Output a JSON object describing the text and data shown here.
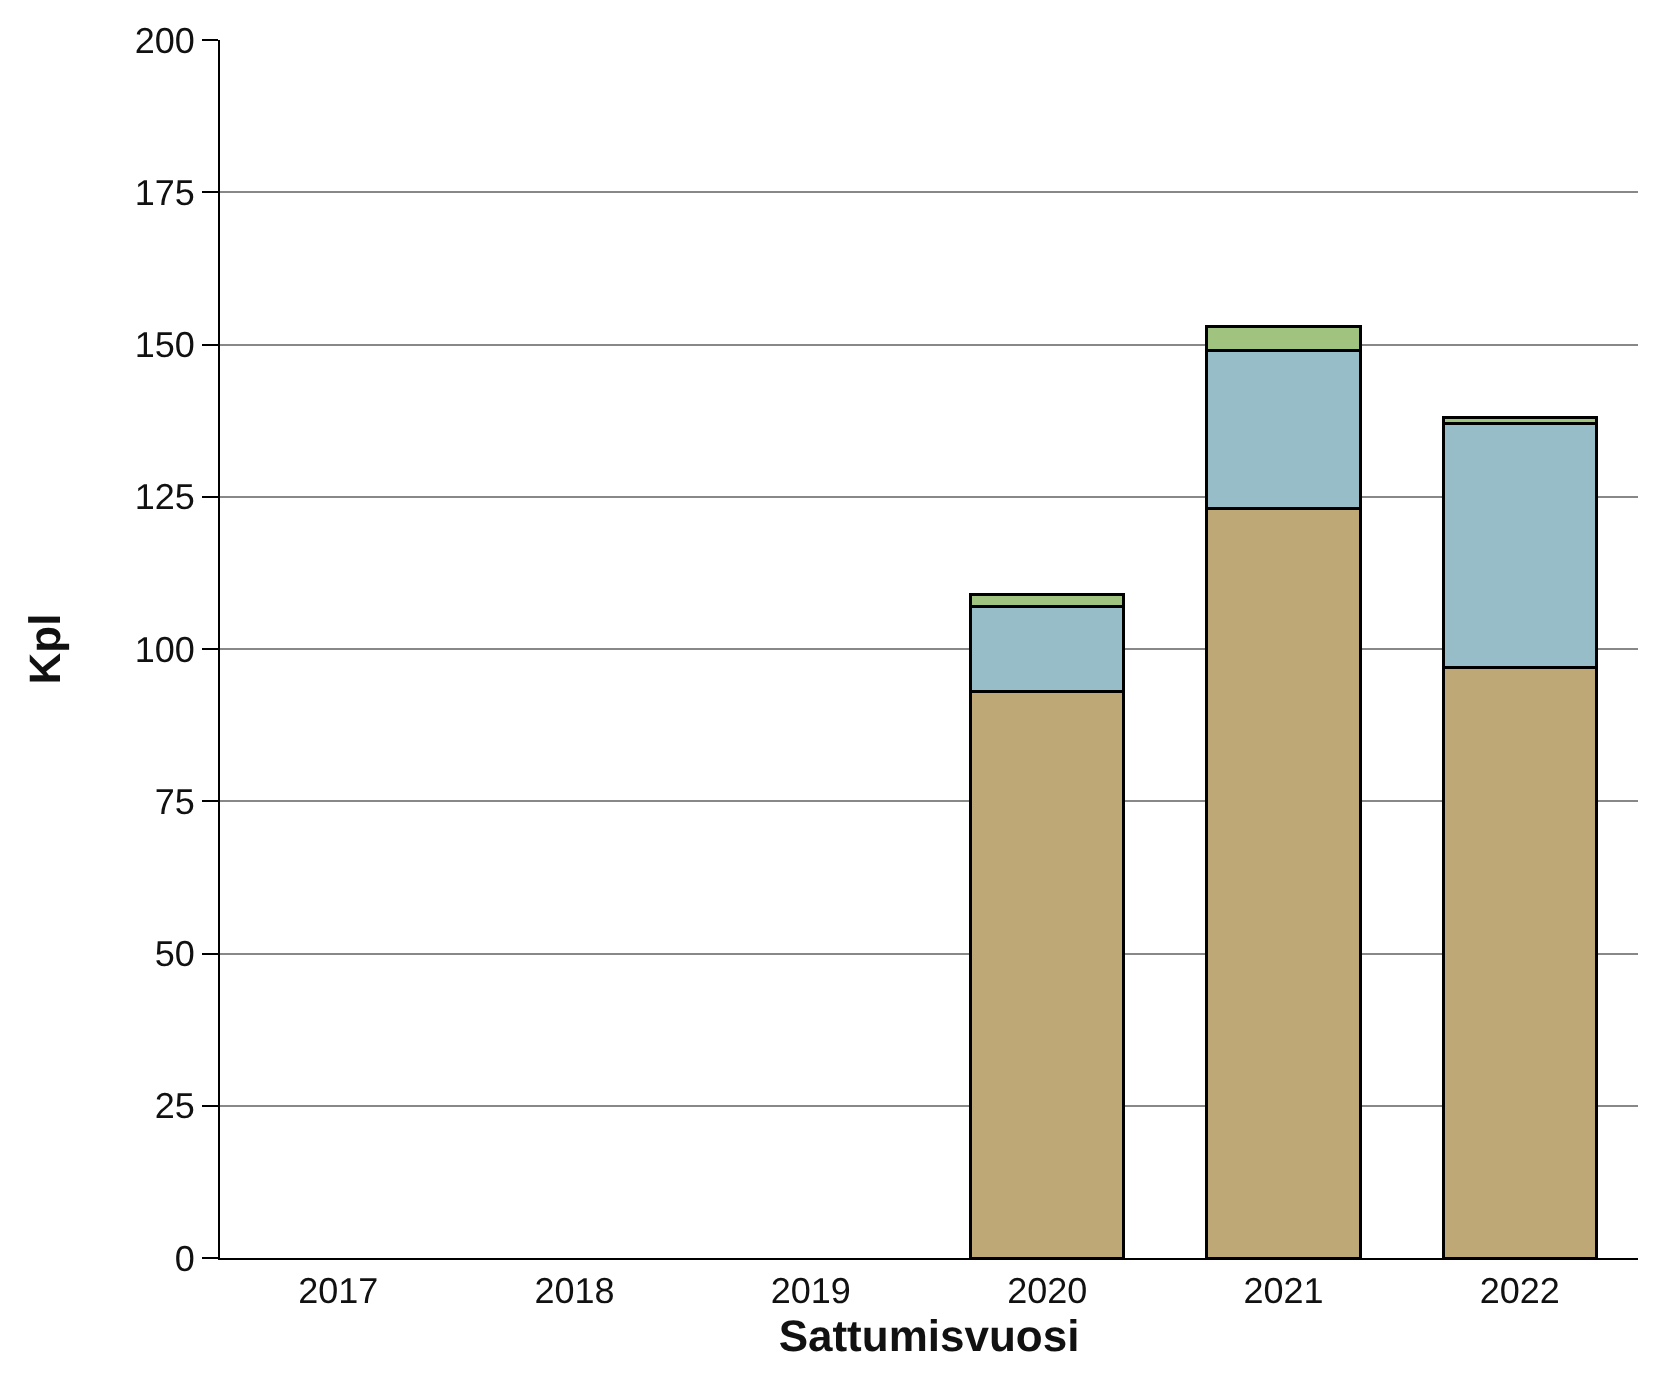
{
  "chart_data": {
    "type": "bar",
    "stacked": true,
    "xlabel": "Sattumisvuosi",
    "ylabel": "Kpl",
    "categories": [
      "2017",
      "2018",
      "2019",
      "2020",
      "2021",
      "2022"
    ],
    "series": [
      {
        "color": "#bea875",
        "values": [
          null,
          null,
          null,
          93,
          123,
          97
        ]
      },
      {
        "color": "#96bdc8",
        "values": [
          null,
          null,
          null,
          14,
          26,
          40
        ]
      },
      {
        "color": "#a0c47f",
        "values": [
          null,
          null,
          null,
          2,
          4,
          1
        ]
      }
    ],
    "ylim": [
      0,
      200
    ],
    "yticks": [
      0,
      25,
      50,
      75,
      100,
      125,
      150,
      175,
      200
    ],
    "grid": "y"
  }
}
